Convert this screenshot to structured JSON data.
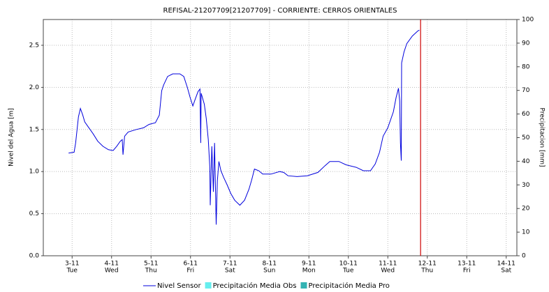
{
  "chart_data": {
    "type": "line",
    "title": "REFISAL-21207709[21207709] - CORRIENTE: CERROS ORIENTALES",
    "y_label": "Nivel del Agua [m]",
    "y2_label": "Precipitacion [mm]",
    "x": [
      2.91,
      3.05,
      3.09,
      3.16,
      3.21,
      3.27,
      3.32,
      3.41,
      3.53,
      3.65,
      3.78,
      3.92,
      4.04,
      4.13,
      4.22,
      4.27,
      4.29,
      4.33,
      4.42,
      4.63,
      4.81,
      4.95,
      5.11,
      5.21,
      5.27,
      5.32,
      5.42,
      5.55,
      5.73,
      5.83,
      5.92,
      5.99,
      6.06,
      6.12,
      6.19,
      6.24,
      6.26,
      6.27,
      6.35,
      6.4,
      6.45,
      6.49,
      6.5,
      6.54,
      6.58,
      6.61,
      6.65,
      6.68,
      6.72,
      6.77,
      6.84,
      6.93,
      7.02,
      7.12,
      7.25,
      7.37,
      7.48,
      7.55,
      7.62,
      7.73,
      7.83,
      8.04,
      8.26,
      8.36,
      8.47,
      8.7,
      8.96,
      9.23,
      9.41,
      9.53,
      9.76,
      9.94,
      10.2,
      10.38,
      10.56,
      10.68,
      10.79,
      10.88,
      11.0,
      11.14,
      11.21,
      11.27,
      11.3,
      11.32,
      11.34,
      11.35,
      11.41,
      11.48,
      11.62,
      11.76,
      11.8
    ],
    "series": [
      {
        "name": "Nivel Sensor",
        "color": "#0000dd",
        "values": [
          1.22,
          1.23,
          1.34,
          1.65,
          1.75,
          1.67,
          1.59,
          1.53,
          1.45,
          1.36,
          1.3,
          1.26,
          1.25,
          1.3,
          1.36,
          1.38,
          1.2,
          1.42,
          1.47,
          1.5,
          1.52,
          1.56,
          1.58,
          1.67,
          1.96,
          2.03,
          2.13,
          2.16,
          2.16,
          2.13,
          2.0,
          1.88,
          1.78,
          1.86,
          1.95,
          1.98,
          1.34,
          1.93,
          1.8,
          1.63,
          1.38,
          1.05,
          0.6,
          1.3,
          0.76,
          1.34,
          0.37,
          0.89,
          1.12,
          1.01,
          0.93,
          0.84,
          0.74,
          0.66,
          0.6,
          0.66,
          0.79,
          0.9,
          1.03,
          1.01,
          0.97,
          0.97,
          1.0,
          0.99,
          0.95,
          0.94,
          0.95,
          0.99,
          1.07,
          1.12,
          1.12,
          1.08,
          1.05,
          1.01,
          1.01,
          1.09,
          1.23,
          1.42,
          1.52,
          1.71,
          1.88,
          1.99,
          1.84,
          1.34,
          1.13,
          2.29,
          2.42,
          2.52,
          2.61,
          2.67,
          2.68
        ]
      },
      {
        "name": "Precipitación Media Obs",
        "color": "#66eeee",
        "axis": "y2"
      },
      {
        "name": "Precipitación Media Pro",
        "color": "#33b3b3",
        "axis": "y2"
      }
    ],
    "xlim": [
      2.27,
      14.27
    ],
    "xticks": [
      {
        "value": 3,
        "label": "3-11"
      },
      {
        "value": 4,
        "label": "4-11"
      },
      {
        "value": 5,
        "label": "5-11"
      },
      {
        "value": 6,
        "label": "6-11"
      },
      {
        "value": 7,
        "label": "7-11"
      },
      {
        "value": 8,
        "label": "8-11"
      },
      {
        "value": 9,
        "label": "9-11"
      },
      {
        "value": 10,
        "label": "10-11"
      },
      {
        "value": 11,
        "label": "11-11"
      },
      {
        "value": 12,
        "label": "12-11"
      },
      {
        "value": 13,
        "label": "13-11"
      },
      {
        "value": 14,
        "label": "14-11"
      }
    ],
    "xtick_weekdays": [
      "Tue",
      "Wed",
      "Thu",
      "Fri",
      "Sat",
      "Sun",
      "Mon",
      "Tue",
      "Wed",
      "Thu",
      "Fri",
      "Sat"
    ],
    "ylim": [
      0,
      2.806
    ],
    "yticks": [
      {
        "value": 0,
        "label": "0.0"
      },
      0.5,
      {
        "value": 1,
        "label": "1.0"
      },
      1.5,
      {
        "value": 2,
        "label": "2.0"
      },
      2.5
    ],
    "y2lim": [
      0,
      100
    ],
    "y2ticks": [
      0,
      10,
      20,
      30,
      40,
      50,
      60,
      70,
      80,
      90,
      100
    ],
    "grid": true,
    "now_line": {
      "x": 11.83,
      "color": "#cc0000"
    }
  }
}
